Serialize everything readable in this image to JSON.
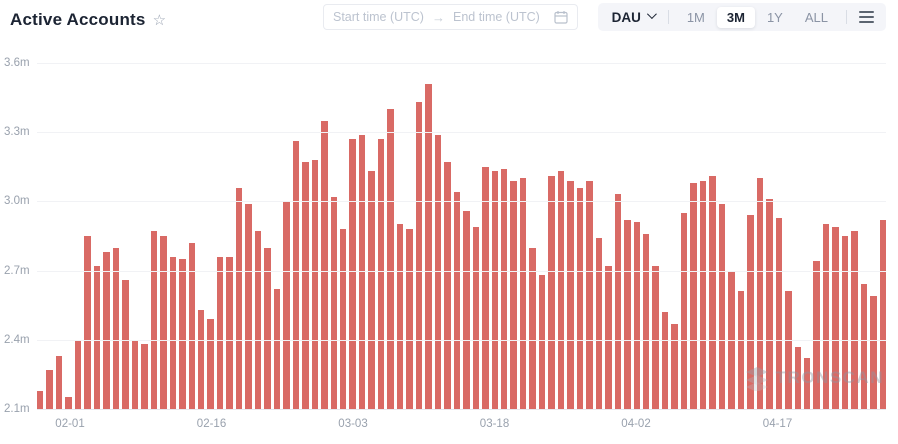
{
  "header": {
    "title": "Active Accounts",
    "star_icon": "☆"
  },
  "date_range": {
    "start_placeholder": "Start time (UTC)",
    "arrow": "→",
    "end_placeholder": "End time (UTC)",
    "calendar_icon": "calendar"
  },
  "controls": {
    "metric": "DAU",
    "metric_chevron": "chevron-down",
    "ranges": [
      {
        "label": "1M",
        "active": false
      },
      {
        "label": "3M",
        "active": true
      },
      {
        "label": "1Y",
        "active": false
      },
      {
        "label": "ALL",
        "active": false
      }
    ],
    "menu_icon": "hamburger-menu"
  },
  "watermark": {
    "text": "TRONSCAN",
    "logo": "tronscan-layers-logo"
  },
  "colors": {
    "bar": "#d96a65",
    "title_text": "#1c2433",
    "muted_text": "#99a1ad",
    "control_bg": "#f4f5f9",
    "gridline": "#f1f2f5"
  },
  "chart_data": {
    "type": "bar",
    "title": "Active Accounts",
    "unit": "m",
    "ylim": [
      2.1,
      3.6
    ],
    "grid": true,
    "legend": "none",
    "y_ticks": [
      {
        "label": "3.6m",
        "value": 3.6
      },
      {
        "label": "3.3m",
        "value": 3.3
      },
      {
        "label": "3.0m",
        "value": 3.0
      },
      {
        "label": "2.7m",
        "value": 2.7
      },
      {
        "label": "2.4m",
        "value": 2.4
      },
      {
        "label": "2.1m",
        "value": 2.1
      }
    ],
    "x_ticks": [
      {
        "label": "02-01",
        "index": 3
      },
      {
        "label": "02-16",
        "index": 18
      },
      {
        "label": "03-03",
        "index": 33
      },
      {
        "label": "03-18",
        "index": 48
      },
      {
        "label": "04-02",
        "index": 63
      },
      {
        "label": "04-17",
        "index": 78
      }
    ],
    "x": [
      "01-29",
      "01-30",
      "01-31",
      "02-01",
      "02-02",
      "02-03",
      "02-04",
      "02-05",
      "02-06",
      "02-07",
      "02-08",
      "02-09",
      "02-10",
      "02-11",
      "02-12",
      "02-13",
      "02-14",
      "02-15",
      "02-16",
      "02-17",
      "02-18",
      "02-19",
      "02-20",
      "02-21",
      "02-22",
      "02-23",
      "02-24",
      "02-25",
      "02-26",
      "02-27",
      "02-28",
      "03-01",
      "03-02",
      "03-03",
      "03-04",
      "03-05",
      "03-06",
      "03-07",
      "03-08",
      "03-09",
      "03-10",
      "03-11",
      "03-12",
      "03-13",
      "03-14",
      "03-15",
      "03-16",
      "03-17",
      "03-18",
      "03-19",
      "03-20",
      "03-21",
      "03-22",
      "03-23",
      "03-24",
      "03-25",
      "03-26",
      "03-27",
      "03-28",
      "03-29",
      "03-30",
      "03-31",
      "04-01",
      "04-02",
      "04-03",
      "04-04",
      "04-05",
      "04-06",
      "04-07",
      "04-08",
      "04-09",
      "04-10",
      "04-11",
      "04-12",
      "04-13",
      "04-14",
      "04-15",
      "04-16",
      "04-17",
      "04-18",
      "04-19",
      "04-20",
      "04-21",
      "04-22",
      "04-23",
      "04-24",
      "04-25",
      "04-26",
      "04-27",
      "04-28"
    ],
    "values": [
      2.18,
      2.27,
      2.33,
      2.15,
      2.4,
      2.85,
      2.72,
      2.78,
      2.8,
      2.66,
      2.4,
      2.38,
      2.87,
      2.85,
      2.76,
      2.75,
      2.82,
      2.53,
      2.49,
      2.76,
      2.76,
      3.06,
      2.99,
      2.87,
      2.8,
      2.62,
      3.0,
      3.26,
      3.17,
      3.18,
      3.35,
      3.02,
      2.88,
      3.27,
      3.29,
      3.13,
      3.27,
      3.4,
      2.9,
      2.88,
      3.43,
      3.51,
      3.29,
      3.17,
      3.04,
      2.96,
      2.89,
      3.15,
      3.13,
      3.14,
      3.09,
      3.1,
      2.8,
      2.68,
      3.11,
      3.13,
      3.09,
      3.06,
      3.09,
      2.84,
      2.72,
      3.03,
      2.92,
      2.91,
      2.86,
      2.72,
      2.52,
      2.47,
      2.95,
      3.08,
      3.09,
      3.11,
      2.99,
      2.7,
      2.61,
      2.94,
      3.1,
      3.01,
      2.93,
      2.61,
      2.37,
      2.32,
      2.74,
      2.9,
      2.89,
      2.85,
      2.87,
      2.64,
      2.59,
      2.92
    ]
  }
}
